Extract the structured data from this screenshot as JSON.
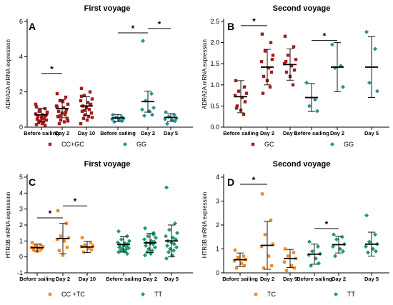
{
  "chart_data": [
    {
      "type": "scatter",
      "panel_letter": "A",
      "title": "First voyage",
      "ylabel": "ADRA2A mRNA expression",
      "ylim": [
        0,
        6
      ],
      "yticks": [
        "0",
        "2",
        "4",
        "6"
      ],
      "ytick_values": [
        0,
        2,
        4,
        6
      ],
      "groups": [
        {
          "name": "CC+GC",
          "color": "#a31b1b",
          "marker": "square",
          "categories": [
            "Before sailing",
            "Day 2",
            "Day 10"
          ],
          "points": [
            [
              1.15,
              1.05,
              0.95,
              0.85,
              0.75,
              0.7,
              0.65,
              0.6,
              0.55,
              0.5,
              0.45,
              0.4,
              0.35,
              0.3,
              0.25,
              0.2,
              0.15,
              0.1,
              0.9,
              0.8,
              1.3,
              0.5
            ],
            [
              1.9,
              1.7,
              1.5,
              1.3,
              1.2,
              1.1,
              1.0,
              0.9,
              0.8,
              0.7,
              0.6,
              0.5,
              0.4,
              0.3,
              0.2,
              1.45,
              1.15,
              0.85,
              0.65,
              0.35
            ],
            [
              2.2,
              2.0,
              1.8,
              1.6,
              1.5,
              1.4,
              1.3,
              1.2,
              1.1,
              1.0,
              0.9,
              0.8,
              0.7,
              0.6,
              0.5,
              0.4,
              1.75,
              1.25,
              0.95,
              0.55,
              0.2
            ]
          ],
          "means": [
            0.7,
            1.05,
            1.2
          ],
          "sd": [
            0.38,
            0.52,
            0.52
          ]
        },
        {
          "name": "GG",
          "color": "#2a8f95",
          "marker": "diamond",
          "categories": [
            "Before sailing",
            "Day 2",
            "Day 5"
          ],
          "points": [
            [
              0.7,
              0.6,
              0.55,
              0.5,
              0.45,
              0.4,
              0.35,
              0.3
            ],
            [
              4.9,
              1.9,
              1.5,
              1.1,
              1.0,
              0.9,
              0.7,
              0.65
            ],
            [
              0.85,
              0.7,
              0.6,
              0.5,
              0.45,
              0.4,
              0.35,
              0.2
            ]
          ],
          "means": [
            0.52,
            1.45,
            0.55
          ],
          "sd": [
            0.2,
            0.6,
            0.22
          ]
        }
      ],
      "significance": [
        {
          "group": 0,
          "from": 0,
          "to": 1,
          "label": "*",
          "y": 3.05
        },
        {
          "group": 1,
          "from": 0,
          "to": 1,
          "label": "*",
          "y": 5.35
        },
        {
          "group": 1,
          "from": 1,
          "to": 2,
          "label": "*",
          "y": 5.6
        }
      ]
    },
    {
      "type": "scatter",
      "panel_letter": "B",
      "title": "Second voyage",
      "ylabel": "ADRA2A mRNA expression",
      "ylim": [
        0,
        2.5
      ],
      "yticks": [
        "0.0",
        "0.5",
        "1.0",
        "1.5",
        "2.0",
        "2.5"
      ],
      "ytick_values": [
        0,
        0.5,
        1.0,
        1.5,
        2.0,
        2.5
      ],
      "groups": [
        {
          "name": "GC",
          "color": "#a31b1b",
          "marker": "square",
          "categories": [
            "Before sailing",
            "Day 2",
            "Day 5"
          ],
          "points": [
            [
              1.1,
              0.95,
              0.85,
              0.8,
              0.75,
              0.7,
              0.6,
              0.5,
              0.4,
              0.3,
              0.45
            ],
            [
              2.2,
              2.0,
              1.8,
              1.7,
              1.55,
              1.4,
              1.3,
              1.2,
              1.1,
              0.95,
              0.8,
              1.6
            ],
            [
              2.15,
              1.9,
              1.7,
              1.6,
              1.5,
              1.45,
              1.35,
              1.3,
              1.2,
              1.0,
              1.55
            ]
          ],
          "means": [
            0.72,
            1.42,
            1.48
          ],
          "sd": [
            0.38,
            0.42,
            0.37
          ]
        },
        {
          "name": "GG",
          "color": "#2a8f95",
          "marker": "diamond",
          "categories": [
            "Before sailing",
            "Day 2",
            "Day 5"
          ],
          "points": [
            [
              1.05,
              0.65,
              0.5,
              0.38
            ],
            [
              1.95,
              1.45,
              1.4,
              0.95
            ],
            [
              2.25,
              1.85,
              1.05,
              0.85
            ]
          ],
          "means": [
            0.7,
            1.42,
            1.42
          ],
          "sd": [
            0.33,
            0.58,
            0.72
          ]
        }
      ],
      "significance": [
        {
          "group": 0,
          "from": 0,
          "to": 1,
          "label": "*",
          "y": 2.4
        },
        {
          "group": 1,
          "from": 0,
          "to": 1,
          "label": "*",
          "y": 2.05
        }
      ]
    },
    {
      "type": "scatter",
      "panel_letter": "C",
      "title": "First voyage",
      "ylabel": "HTR3B mRNA expression",
      "ylim": [
        -1,
        5
      ],
      "yticks": [
        "-1",
        "0",
        "1",
        "2",
        "3",
        "4",
        "5"
      ],
      "ytick_values": [
        -1,
        0,
        1,
        2,
        3,
        4,
        5
      ],
      "groups": [
        {
          "name": "CC +TC",
          "color": "#f28a25",
          "marker": "square",
          "categories": [
            "Before sailing",
            "Day 2",
            "Day 10"
          ],
          "points": [
            [
              0.9,
              0.75,
              0.7,
              0.65,
              0.6,
              0.55,
              0.5,
              0.45,
              0.35
            ],
            [
              2.9,
              2.1,
              1.3,
              1.2,
              1.1,
              1.0,
              0.6,
              0.4,
              0.1
            ],
            [
              1.2,
              0.9,
              0.75,
              0.7,
              0.65,
              0.55,
              0.45,
              0.3
            ]
          ],
          "means": [
            0.58,
            1.15,
            0.62
          ],
          "sd": [
            0.22,
            0.95,
            0.35
          ]
        },
        {
          "name": "TT",
          "color": "#1d9a6c",
          "marker": "diamond",
          "categories": [
            "Before sailing",
            "Day 2",
            "Day 5"
          ],
          "points": [
            [
              1.6,
              1.3,
              1.1,
              1.0,
              0.9,
              0.85,
              0.8,
              0.75,
              0.7,
              0.65,
              0.6,
              0.55,
              0.5,
              0.45,
              0.4,
              0.35,
              0.3,
              0.2
            ],
            [
              1.8,
              1.5,
              1.3,
              1.2,
              1.1,
              1.0,
              0.95,
              0.9,
              0.85,
              0.8,
              0.7,
              0.6,
              0.5,
              0.4,
              0.3,
              0.2,
              0.1,
              1.4
            ],
            [
              4.35,
              2.1,
              1.7,
              1.5,
              1.3,
              1.2,
              1.1,
              1.0,
              0.9,
              0.8,
              0.7,
              0.6,
              0.5,
              0.4,
              0.3,
              0.1,
              -0.1
            ]
          ],
          "means": [
            0.78,
            0.88,
            1.0
          ],
          "sd": [
            0.48,
            0.6,
            1.0
          ]
        }
      ],
      "significance": [
        {
          "group": 0,
          "from": 0,
          "to": 1,
          "label": "*",
          "y": 2.45
        },
        {
          "group": 0,
          "from": 1,
          "to": 2,
          "label": "*",
          "y": 3.2
        }
      ]
    },
    {
      "type": "scatter",
      "panel_letter": "D",
      "title": "Second voyage",
      "ylabel": "HTR3B mRNA expression",
      "ylim": [
        0,
        4
      ],
      "yticks": [
        "0",
        "1",
        "2",
        "3",
        "4"
      ],
      "ytick_values": [
        0,
        1,
        2,
        3,
        4
      ],
      "groups": [
        {
          "name": "TC",
          "color": "#f28a25",
          "marker": "square",
          "categories": [
            "Before sailing",
            "Day 2",
            "Day 5"
          ],
          "points": [
            [
              0.95,
              0.7,
              0.65,
              0.55,
              0.5,
              0.4,
              0.3,
              0.2
            ],
            [
              3.3,
              2.2,
              1.6,
              1.2,
              1.1,
              0.7,
              0.3,
              0.2
            ],
            [
              1.0,
              0.85,
              0.7,
              0.6,
              0.45,
              0.3,
              0.2,
              0.1
            ]
          ],
          "means": [
            0.55,
            1.15,
            0.6
          ],
          "sd": [
            0.28,
            1.0,
            0.38
          ]
        },
        {
          "name": "TT",
          "color": "#1d9a6c",
          "marker": "diamond",
          "categories": [
            "Before sailing",
            "Day 2",
            "Day 5"
          ],
          "points": [
            [
              1.3,
              1.1,
              0.9,
              0.8,
              0.75,
              0.6,
              0.4,
              0.3
            ],
            [
              1.6,
              1.5,
              1.4,
              1.2,
              1.1,
              1.0,
              0.9,
              0.7
            ],
            [
              2.4,
              1.6,
              1.3,
              1.2,
              1.1,
              1.0,
              0.9,
              0.85
            ]
          ],
          "means": [
            0.78,
            1.18,
            1.2
          ],
          "sd": [
            0.42,
            0.35,
            0.5
          ]
        }
      ],
      "significance": [
        {
          "group": 0,
          "from": 0,
          "to": 1,
          "label": "*",
          "y": 3.7
        },
        {
          "group": 1,
          "from": 0,
          "to": 1,
          "label": "*",
          "y": 1.85
        }
      ]
    }
  ]
}
